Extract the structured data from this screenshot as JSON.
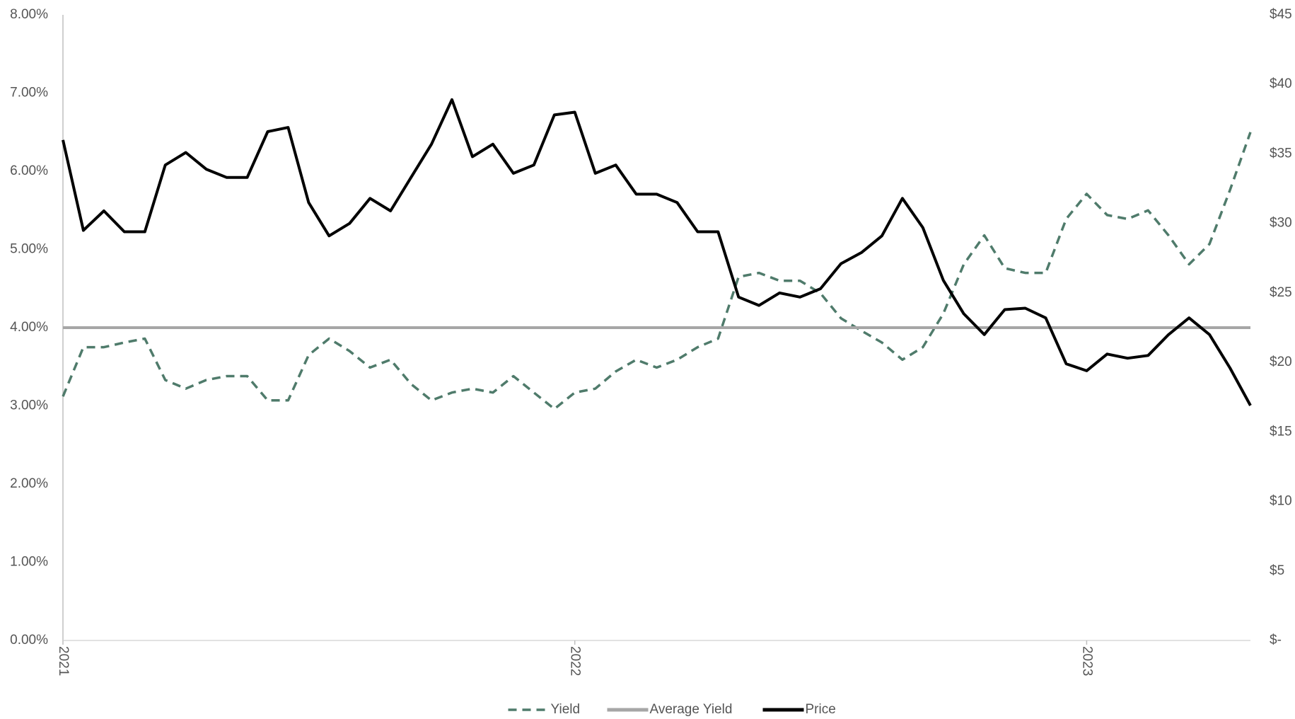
{
  "chart_data": {
    "type": "line",
    "x": [
      2021.0,
      2021.04,
      2021.08,
      2021.12,
      2021.16,
      2021.2,
      2021.24,
      2021.28,
      2021.32,
      2021.36,
      2021.4,
      2021.44,
      2021.48,
      2021.52,
      2021.56,
      2021.6,
      2021.64,
      2021.68,
      2021.72,
      2021.76,
      2021.8,
      2021.84,
      2021.88,
      2021.92,
      2021.96,
      2022.0,
      2022.04,
      2022.08,
      2022.12,
      2022.16,
      2022.2,
      2022.24,
      2022.28,
      2022.32,
      2022.36,
      2022.4,
      2022.44,
      2022.48,
      2022.52,
      2022.56,
      2022.6,
      2022.64,
      2022.68,
      2022.72,
      2022.76,
      2022.8,
      2022.84,
      2022.88,
      2022.92,
      2022.96,
      2023.0,
      2023.04,
      2023.08,
      2023.12,
      2023.16,
      2023.2,
      2023.24,
      2023.28,
      2023.32
    ],
    "xlim": [
      2021,
      2023.32
    ],
    "xticks": [
      2021,
      2022,
      2023
    ],
    "ylim": [
      0,
      8
    ],
    "yticks": [
      {
        "value": 0,
        "label": "0.00%"
      },
      {
        "value": 1,
        "label": "1.00%"
      },
      {
        "value": 2,
        "label": "2.00%"
      },
      {
        "value": 3,
        "label": "3.00%"
      },
      {
        "value": 4,
        "label": "4.00%"
      },
      {
        "value": 5,
        "label": "5.00%"
      },
      {
        "value": 6,
        "label": "6.00%"
      },
      {
        "value": 7,
        "label": "7.00%"
      },
      {
        "value": 8,
        "label": "8.00%"
      }
    ],
    "y2lim": [
      0,
      45
    ],
    "y2ticks": [
      {
        "value": 0,
        "label": "$-"
      },
      {
        "value": 5,
        "label": "$5"
      },
      {
        "value": 10,
        "label": "$10"
      },
      {
        "value": 15,
        "label": "$15"
      },
      {
        "value": 20,
        "label": "$20"
      },
      {
        "value": 25,
        "label": "$25"
      },
      {
        "value": 30,
        "label": "$30"
      },
      {
        "value": 35,
        "label": "$35"
      },
      {
        "value": 40,
        "label": "$40"
      },
      {
        "value": 45,
        "label": "$45"
      }
    ],
    "grid": false,
    "legend": "bottom",
    "series": [
      {
        "name": "Yield",
        "color": "#4f7b6b",
        "dashed": true,
        "values": [
          3.12,
          3.75,
          3.75,
          3.81,
          3.86,
          3.33,
          3.22,
          3.33,
          3.38,
          3.38,
          3.07,
          3.07,
          3.65,
          3.86,
          3.7,
          3.49,
          3.59,
          3.28,
          3.07,
          3.17,
          3.22,
          3.17,
          3.38,
          3.17,
          2.96,
          3.17,
          3.22,
          3.44,
          3.59,
          3.49,
          3.59,
          3.75,
          3.86,
          4.65,
          4.7,
          4.6,
          4.6,
          4.44,
          4.12,
          3.96,
          3.81,
          3.59,
          3.75,
          4.18,
          4.81,
          5.18,
          4.76,
          4.7,
          4.7,
          5.39,
          5.71,
          5.44,
          5.39,
          5.5,
          5.18,
          4.81,
          5.07,
          5.76,
          6.5
        ]
      },
      {
        "name": "Average Yield",
        "color": "#a6a6a6",
        "x": [
          2021,
          2023.32
        ],
        "values": [
          4,
          4
        ]
      },
      {
        "name": "Price",
        "color": "#000000",
        "axis": "y2",
        "values": [
          36.0,
          29.5,
          30.9,
          29.4,
          29.4,
          34.2,
          35.1,
          33.9,
          33.3,
          33.3,
          36.6,
          36.9,
          31.5,
          29.1,
          30.0,
          31.8,
          30.9,
          33.3,
          35.7,
          38.9,
          34.8,
          35.7,
          33.6,
          34.2,
          37.8,
          38.0,
          33.6,
          34.2,
          32.1,
          32.1,
          31.5,
          29.4,
          29.4,
          24.7,
          24.1,
          25.0,
          24.7,
          25.3,
          27.1,
          27.9,
          29.1,
          31.8,
          29.7,
          25.9,
          23.5,
          22.0,
          23.8,
          23.9,
          23.2,
          19.9,
          19.4,
          20.6,
          20.3,
          20.5,
          22.0,
          23.2,
          22.0,
          19.6,
          16.9
        ]
      }
    ]
  }
}
